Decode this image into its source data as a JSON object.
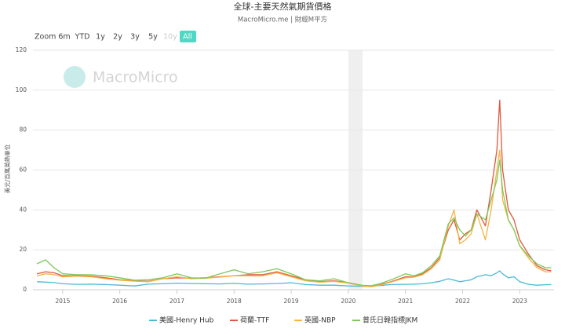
{
  "chart_data": {
    "type": "line",
    "title": "全球-主要天然氣期貨價格",
    "subtitle": "MacroMicro.me | 財經M平方",
    "zoom_label": "Zoom",
    "range_buttons": [
      "6m",
      "YTD",
      "1y",
      "2y",
      "3y",
      "5y",
      "10y",
      "All"
    ],
    "active_button": "All",
    "disabled_button": "10y",
    "watermark": "MacroMicro",
    "y_label": "美元/百萬英熱單位",
    "shaded_range": [
      2020.0,
      2020.25
    ],
    "x": [
      2014.55,
      2014.7,
      2014.85,
      2015.0,
      2015.25,
      2015.5,
      2015.75,
      2016.0,
      2016.25,
      2016.5,
      2016.75,
      2017.0,
      2017.25,
      2017.5,
      2017.75,
      2018.0,
      2018.25,
      2018.5,
      2018.75,
      2019.0,
      2019.25,
      2019.5,
      2019.75,
      2020.0,
      2020.25,
      2020.4,
      2020.55,
      2020.75,
      2021.0,
      2021.15,
      2021.3,
      2021.45,
      2021.6,
      2021.75,
      2021.85,
      2021.95,
      2022.05,
      2022.15,
      2022.25,
      2022.4,
      2022.5,
      2022.6,
      2022.65,
      2022.7,
      2022.8,
      2022.9,
      2023.0,
      2023.15,
      2023.3,
      2023.45,
      2023.55
    ],
    "series": [
      {
        "name": "美國-Henry Hub",
        "color": "#4db8d8",
        "values": [
          4,
          3.8,
          3.6,
          3,
          2.7,
          2.8,
          2.6,
          2.3,
          1.9,
          2.8,
          3,
          3.3,
          3.1,
          3,
          2.9,
          3.2,
          2.8,
          2.9,
          3.1,
          3.5,
          2.6,
          2.3,
          2.3,
          1.9,
          1.7,
          1.8,
          2.1,
          2.6,
          2.7,
          2.8,
          3,
          3.5,
          4.2,
          5.5,
          4.8,
          4,
          4.5,
          5,
          6.5,
          7.5,
          7,
          8.5,
          9.5,
          8,
          6,
          6.5,
          4,
          2.7,
          2.3,
          2.5,
          2.6
        ]
      },
      {
        "name": "荷蘭-TTF",
        "color": "#e0573a",
        "values": [
          8,
          9,
          8.5,
          7,
          7,
          6.8,
          6,
          5,
          4.5,
          4.2,
          5.5,
          6,
          5.8,
          6,
          6.5,
          7,
          7.5,
          7.5,
          9,
          7,
          5,
          4,
          4.5,
          3.5,
          2,
          1.6,
          2.5,
          4,
          6.5,
          6.5,
          8,
          11,
          16,
          30,
          35,
          25,
          28,
          30,
          40,
          32,
          50,
          70,
          95,
          60,
          40,
          35,
          25,
          18,
          12,
          10,
          9.5
        ]
      },
      {
        "name": "英國-NBP",
        "color": "#f5b342",
        "values": [
          7,
          8,
          7.5,
          6.5,
          6.8,
          6.5,
          5.5,
          4.8,
          4.3,
          4,
          5.5,
          6.5,
          5.5,
          5.8,
          6.3,
          7,
          7,
          7,
          8.5,
          6.5,
          4.5,
          3.8,
          4.2,
          3.3,
          1.8,
          1.5,
          2.3,
          3.8,
          6,
          6.3,
          7.5,
          10.5,
          15,
          32,
          40,
          23,
          25,
          28,
          38,
          25,
          40,
          60,
          70,
          45,
          35,
          30,
          22,
          16,
          11,
          9,
          9
        ]
      },
      {
        "name": "普氏日韓指標JKM",
        "color": "#7dc85a",
        "values": [
          13,
          15,
          11,
          8,
          7.5,
          7.5,
          7,
          6,
          4.8,
          5,
          6,
          8,
          6,
          5.8,
          8,
          10,
          8,
          9,
          10.5,
          8,
          5,
          4.5,
          5.5,
          3.5,
          2.2,
          2,
          3,
          5,
          8,
          7,
          8.5,
          12,
          17,
          33,
          36,
          30,
          27,
          30,
          38,
          35,
          45,
          55,
          65,
          50,
          35,
          30,
          22,
          17,
          13,
          11,
          11
        ]
      }
    ],
    "xlim": [
      2014.48,
      2023.6
    ],
    "xticks": [
      2015,
      2016,
      2017,
      2018,
      2019,
      2020,
      2021,
      2022,
      2023
    ],
    "ylim": [
      0,
      120
    ],
    "yticks": [
      0,
      20,
      40,
      60,
      80,
      100,
      120
    ],
    "grid": true
  }
}
